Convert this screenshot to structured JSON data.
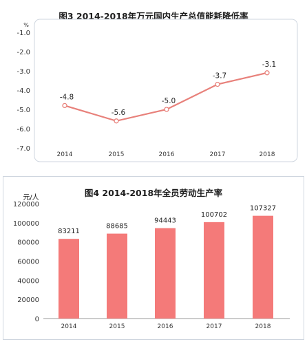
{
  "chart_data": [
    {
      "type": "line",
      "title": "图3   2014-2018年万元国内生产总值能耗降低率",
      "ylabel": "%",
      "categories": [
        "2014",
        "2015",
        "2016",
        "2017",
        "2018"
      ],
      "series": [
        {
          "values": [
            -4.8,
            -5.6,
            -5.0,
            -3.7,
            -3.1
          ]
        }
      ],
      "data_labels": [
        "-4.8",
        "-5.6",
        "-5.0",
        "-3.7",
        "-3.1"
      ],
      "y_ticks": [
        "-1.0",
        "-2.0",
        "-3.0",
        "-4.0",
        "-5.0",
        "-6.0",
        "-7.0"
      ],
      "ylim": [
        -7.0,
        -1.0
      ],
      "grid": false,
      "colors": {
        "line": "#e8817b",
        "marker_fill": "#ffffff",
        "frame": "#cfd6df"
      }
    },
    {
      "type": "bar",
      "title": "图4   2014-2018年全员劳动生产率",
      "ylabel": "元/人",
      "categories": [
        "2014",
        "2015",
        "2016",
        "2017",
        "2018"
      ],
      "series": [
        {
          "values": [
            83211,
            88685,
            94443,
            100702,
            107327
          ]
        }
      ],
      "data_labels": [
        "83211",
        "88685",
        "94443",
        "100702",
        "107327"
      ],
      "y_ticks": [
        "0",
        "20000",
        "40000",
        "60000",
        "80000",
        "100000",
        "120000"
      ],
      "ylim": [
        0,
        120000
      ],
      "grid": false,
      "colors": {
        "bar": "#f47a79",
        "axis": "#999999"
      }
    }
  ]
}
